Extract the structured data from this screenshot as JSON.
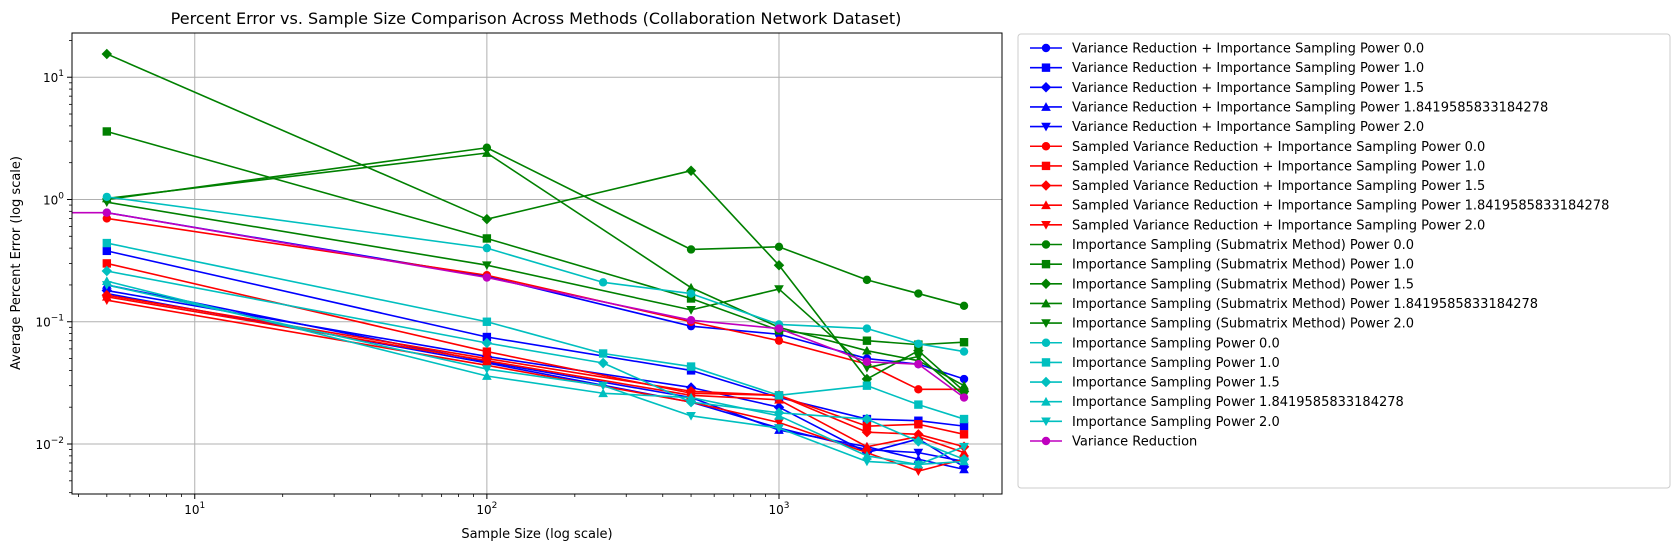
{
  "chart_data": {
    "type": "line",
    "title": "Percent Error vs. Sample Size Comparison Across Methods (Collaboration Network Dataset)",
    "xlabel": "Sample Size (log scale)",
    "ylabel": "Average Percent Error (log scale)",
    "x_scale": "log",
    "y_scale": "log",
    "xlim": [
      3.8,
      5800
    ],
    "ylim": [
      0.0039,
      23
    ],
    "x_ticks": [
      {
        "value": 10,
        "label_base": "10",
        "label_exp": "1"
      },
      {
        "value": 100,
        "label_base": "10",
        "label_exp": "2"
      },
      {
        "value": 1000,
        "label_base": "10",
        "label_exp": "3"
      }
    ],
    "y_ticks": [
      {
        "value": 0.01,
        "label_base": "10",
        "label_exp": "−2"
      },
      {
        "value": 0.1,
        "label_base": "10",
        "label_exp": "−1"
      },
      {
        "value": 1,
        "label_base": "10",
        "label_exp": "0"
      },
      {
        "value": 10,
        "label_base": "10",
        "label_exp": "1"
      }
    ],
    "grid": true,
    "legend_position": "outside-right",
    "series": [
      {
        "name": "Variance Reduction + Importance Sampling Power 0.0",
        "color": "#0000ff",
        "marker": "circle",
        "x": [
          5,
          100,
          500,
          1000,
          2000,
          3000,
          4300
        ],
        "y": [
          0.78,
          0.235,
          0.092,
          0.079,
          0.05,
          0.045,
          0.034
        ]
      },
      {
        "name": "Variance Reduction + Importance Sampling Power 1.0",
        "color": "#0000ff",
        "marker": "square",
        "x": [
          5,
          100,
          500,
          1000,
          2000,
          3000,
          4300
        ],
        "y": [
          0.38,
          0.075,
          0.04,
          0.024,
          0.016,
          0.0155,
          0.014
        ]
      },
      {
        "name": "Variance Reduction + Importance Sampling Power 1.5",
        "color": "#0000ff",
        "marker": "diamond",
        "x": [
          5,
          100,
          500,
          1000,
          2000,
          3000,
          4300
        ],
        "y": [
          0.18,
          0.052,
          0.029,
          0.02,
          0.0085,
          0.011,
          0.0065
        ]
      },
      {
        "name": "Variance Reduction + Importance Sampling Power 1.8419585833184278",
        "color": "#0000ff",
        "marker": "triangle-up",
        "x": [
          5,
          100,
          500,
          1000,
          2000,
          3000,
          4300
        ],
        "y": [
          0.2,
          0.047,
          0.024,
          0.013,
          0.0095,
          0.0075,
          0.0062
        ]
      },
      {
        "name": "Variance Reduction + Importance Sampling Power 2.0",
        "color": "#0000ff",
        "marker": "triangle-down",
        "x": [
          5,
          100,
          500,
          1000,
          2000,
          3000,
          4300
        ],
        "y": [
          0.17,
          0.046,
          0.022,
          0.0135,
          0.009,
          0.0085,
          0.0072
        ]
      },
      {
        "name": "Sampled Variance Reduction + Importance Sampling Power 0.0",
        "color": "#ff0000",
        "marker": "circle",
        "x": [
          5,
          100,
          500,
          1000,
          2000,
          3000,
          4300
        ],
        "y": [
          0.7,
          0.24,
          0.1,
          0.07,
          0.045,
          0.028,
          0.028
        ]
      },
      {
        "name": "Sampled Variance Reduction + Importance Sampling Power 1.0",
        "color": "#ff0000",
        "marker": "square",
        "x": [
          5,
          100,
          500,
          1000,
          2000,
          3000,
          4300
        ],
        "y": [
          0.3,
          0.057,
          0.026,
          0.025,
          0.014,
          0.0145,
          0.012
        ]
      },
      {
        "name": "Sampled Variance Reduction + Importance Sampling Power 1.5",
        "color": "#ff0000",
        "marker": "diamond",
        "x": [
          5,
          100,
          500,
          1000,
          2000,
          3000,
          4300
        ],
        "y": [
          0.165,
          0.05,
          0.027,
          0.025,
          0.0125,
          0.012,
          0.0095
        ]
      },
      {
        "name": "Sampled Variance Reduction + Importance Sampling Power 1.8419585833184278",
        "color": "#ff0000",
        "marker": "triangle-up",
        "x": [
          5,
          100,
          500,
          1000,
          2000,
          3000,
          4300
        ],
        "y": [
          0.16,
          0.048,
          0.025,
          0.023,
          0.0095,
          0.0115,
          0.0085
        ]
      },
      {
        "name": "Sampled Variance Reduction + Importance Sampling Power 2.0",
        "color": "#ff0000",
        "marker": "triangle-down",
        "x": [
          5,
          100,
          500,
          1000,
          2000,
          3000,
          4300
        ],
        "y": [
          0.15,
          0.044,
          0.022,
          0.015,
          0.0085,
          0.006,
          0.0075
        ]
      },
      {
        "name": "Importance Sampling (Submatrix Method) Power 0.0",
        "color": "#008000",
        "marker": "circle",
        "x": [
          5,
          100,
          500,
          1000,
          2000,
          3000,
          4300
        ],
        "y": [
          1.0,
          2.65,
          0.39,
          0.41,
          0.22,
          0.17,
          0.135
        ]
      },
      {
        "name": "Importance Sampling (Submatrix Method) Power 1.0",
        "color": "#008000",
        "marker": "square",
        "x": [
          5,
          100,
          500,
          1000,
          2000,
          3000,
          4300
        ],
        "y": [
          3.6,
          0.48,
          0.155,
          0.085,
          0.07,
          0.065,
          0.068
        ]
      },
      {
        "name": "Importance Sampling (Submatrix Method) Power 1.5",
        "color": "#008000",
        "marker": "diamond",
        "x": [
          5,
          100,
          500,
          1000,
          2000,
          3000,
          4300
        ],
        "y": [
          15.5,
          0.69,
          1.72,
          0.29,
          0.034,
          0.058,
          0.027
        ]
      },
      {
        "name": "Importance Sampling (Submatrix Method) Power 1.8419585833184278",
        "color": "#008000",
        "marker": "triangle-up",
        "x": [
          5,
          100,
          500,
          1000,
          2000,
          3000,
          4300
        ],
        "y": [
          1.02,
          2.4,
          0.19,
          0.09,
          0.058,
          0.048,
          0.03
        ]
      },
      {
        "name": "Importance Sampling (Submatrix Method) Power 2.0",
        "color": "#008000",
        "marker": "triangle-down",
        "x": [
          5,
          100,
          500,
          1000,
          2000,
          3000,
          4300
        ],
        "y": [
          0.95,
          0.29,
          0.125,
          0.185,
          0.042,
          0.052,
          0.025
        ]
      },
      {
        "name": "Importance Sampling Power 0.0",
        "color": "#00bfbf",
        "marker": "circle",
        "x": [
          5,
          100,
          250,
          500,
          1000,
          2000,
          3000,
          4300
        ],
        "y": [
          1.05,
          0.4,
          0.21,
          0.17,
          0.095,
          0.088,
          0.066,
          0.057
        ]
      },
      {
        "name": "Importance Sampling Power 1.0",
        "color": "#00bfbf",
        "marker": "square",
        "x": [
          5,
          100,
          250,
          500,
          1000,
          2000,
          3000,
          4300
        ],
        "y": [
          0.44,
          0.1,
          0.055,
          0.043,
          0.025,
          0.03,
          0.021,
          0.016
        ]
      },
      {
        "name": "Importance Sampling Power 1.5",
        "color": "#00bfbf",
        "marker": "diamond",
        "x": [
          5,
          100,
          250,
          500,
          1000,
          2000,
          3000,
          4300
        ],
        "y": [
          0.26,
          0.067,
          0.046,
          0.022,
          0.018,
          0.016,
          0.0105,
          0.0075
        ]
      },
      {
        "name": "Importance Sampling Power 1.8419585833184278",
        "color": "#00bfbf",
        "marker": "triangle-up",
        "x": [
          5,
          100,
          250,
          500,
          1000,
          2000,
          3000,
          4300
        ],
        "y": [
          0.215,
          0.036,
          0.026,
          0.024,
          0.017,
          0.008,
          0.0068,
          0.0072
        ]
      },
      {
        "name": "Importance Sampling Power 2.0",
        "color": "#00bfbf",
        "marker": "triangle-down",
        "x": [
          5,
          100,
          250,
          500,
          1000,
          2000,
          3000,
          4300
        ],
        "y": [
          0.2,
          0.041,
          0.03,
          0.017,
          0.0135,
          0.0072,
          0.0068,
          0.0095
        ]
      },
      {
        "name": "Variance Reduction",
        "color": "#bf00bf",
        "marker": "circle",
        "x": [
          3.8,
          5,
          100,
          500,
          1000,
          2000,
          3000,
          4300
        ],
        "y": [
          0.78,
          0.78,
          0.23,
          0.103,
          0.088,
          0.047,
          0.045,
          0.024
        ]
      }
    ]
  }
}
